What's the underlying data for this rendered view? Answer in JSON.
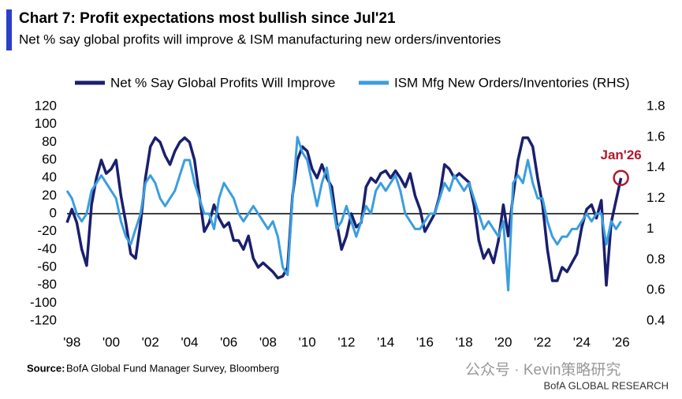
{
  "chart_data": {
    "type": "line",
    "title": "Chart 7: Profit expectations most bullish since Jul'21",
    "subtitle": "Net % say global profits will improve & ISM manufacturing new orders/inventories",
    "annotation": "Jan'26",
    "source_label": "Source:",
    "source_text": "BofA Global Fund Manager Survey, Bloomberg",
    "brand": "BofA GLOBAL RESEARCH",
    "watermark": "公众号 · Kevin策略研究",
    "x": [
      1997.75,
      1998,
      1998.25,
      1998.5,
      1998.75,
      1999,
      1999.25,
      1999.5,
      1999.75,
      2000,
      2000.25,
      2000.5,
      2000.75,
      2001,
      2001.25,
      2001.5,
      2001.75,
      2002,
      2002.25,
      2002.5,
      2002.75,
      2003,
      2003.25,
      2003.5,
      2003.75,
      2004,
      2004.25,
      2004.5,
      2004.75,
      2005,
      2005.25,
      2005.5,
      2005.75,
      2006,
      2006.25,
      2006.5,
      2006.75,
      2007,
      2007.25,
      2007.5,
      2007.75,
      2008,
      2008.25,
      2008.5,
      2008.75,
      2009,
      2009.25,
      2009.5,
      2009.75,
      2010,
      2010.25,
      2010.5,
      2010.75,
      2011,
      2011.25,
      2011.5,
      2011.75,
      2012,
      2012.25,
      2012.5,
      2012.75,
      2013,
      2013.25,
      2013.5,
      2013.75,
      2014,
      2014.25,
      2014.5,
      2014.75,
      2015,
      2015.25,
      2015.5,
      2015.75,
      2016,
      2016.25,
      2016.5,
      2016.75,
      2017,
      2017.25,
      2017.5,
      2017.75,
      2018,
      2018.25,
      2018.5,
      2018.75,
      2019,
      2019.25,
      2019.5,
      2019.75,
      2020,
      2020.25,
      2020.5,
      2020.75,
      2021,
      2021.25,
      2021.5,
      2021.75,
      2022,
      2022.25,
      2022.5,
      2022.75,
      2023,
      2023.25,
      2023.5,
      2023.75,
      2024,
      2024.25,
      2024.5,
      2024.75,
      2025,
      2025.25,
      2025.5,
      2025.75,
      2026
    ],
    "series": [
      {
        "name": "Net % Say Global Profits Will Improve",
        "color": "#1a1f6e",
        "values": [
          -10,
          5,
          -10,
          -40,
          -58,
          10,
          40,
          60,
          45,
          50,
          60,
          20,
          -10,
          -45,
          -50,
          -10,
          40,
          75,
          85,
          80,
          65,
          55,
          70,
          80,
          85,
          80,
          60,
          20,
          -20,
          -10,
          10,
          -5,
          -15,
          -10,
          -30,
          -30,
          -40,
          -25,
          -50,
          -60,
          -55,
          -60,
          -65,
          -72,
          -70,
          -60,
          20,
          60,
          75,
          70,
          50,
          40,
          55,
          40,
          30,
          -10,
          -40,
          -25,
          0,
          -15,
          -10,
          30,
          40,
          35,
          45,
          48,
          40,
          48,
          40,
          30,
          45,
          20,
          5,
          -20,
          -10,
          0,
          20,
          55,
          50,
          40,
          45,
          40,
          35,
          10,
          -30,
          -50,
          -40,
          -55,
          -30,
          10,
          -25,
          20,
          60,
          85,
          85,
          75,
          40,
          10,
          -40,
          -75,
          -75,
          -60,
          -65,
          -55,
          -45,
          -15,
          5,
          10,
          -5,
          15,
          -80,
          -10,
          15,
          40
        ]
      },
      {
        "name": "ISM Mfg New Orders/Inventories (RHS)",
        "color": "#3a9ee0",
        "axis": "y2",
        "values": [
          1.25,
          1.2,
          1.1,
          1.05,
          1.1,
          1.25,
          1.3,
          1.35,
          1.3,
          1.25,
          1.2,
          1.05,
          0.95,
          0.9,
          1.0,
          1.1,
          1.3,
          1.35,
          1.3,
          1.2,
          1.15,
          1.2,
          1.25,
          1.35,
          1.45,
          1.45,
          1.3,
          1.2,
          1.1,
          1.1,
          1.0,
          1.2,
          1.3,
          1.25,
          1.2,
          1.1,
          1.05,
          1.1,
          1.15,
          1.1,
          1.05,
          1.0,
          1.05,
          0.95,
          0.75,
          0.7,
          1.2,
          1.6,
          1.5,
          1.45,
          1.3,
          1.15,
          1.3,
          1.4,
          1.2,
          1.0,
          1.05,
          1.15,
          1.05,
          0.95,
          1.05,
          1.15,
          1.1,
          1.25,
          1.3,
          1.25,
          1.3,
          1.35,
          1.25,
          1.1,
          1.05,
          1.0,
          1.0,
          1.05,
          1.1,
          1.1,
          1.2,
          1.3,
          1.25,
          1.35,
          1.3,
          1.25,
          1.3,
          1.2,
          1.1,
          1.0,
          1.05,
          1.0,
          0.95,
          1.05,
          0.6,
          1.3,
          1.35,
          1.3,
          1.45,
          1.3,
          1.2,
          1.2,
          1.05,
          0.95,
          0.9,
          0.95,
          0.95,
          1.0,
          1.0,
          1.05,
          1.1,
          1.05,
          1.1,
          1.1,
          0.9,
          1.05,
          1.0,
          1.05
        ]
      }
    ],
    "xlim": [
      1997.75,
      2026.9
    ],
    "xticks": [
      {
        "value": 1998,
        "label": "'98"
      },
      {
        "value": 2000,
        "label": "'00"
      },
      {
        "value": 2002,
        "label": "'02"
      },
      {
        "value": 2004,
        "label": "'04"
      },
      {
        "value": 2006,
        "label": "'06"
      },
      {
        "value": 2008,
        "label": "'08"
      },
      {
        "value": 2010,
        "label": "'10"
      },
      {
        "value": 2012,
        "label": "'12"
      },
      {
        "value": 2014,
        "label": "'14"
      },
      {
        "value": 2016,
        "label": "'16"
      },
      {
        "value": 2018,
        "label": "'18"
      },
      {
        "value": 2020,
        "label": "'20"
      },
      {
        "value": 2022,
        "label": "'22"
      },
      {
        "value": 2024,
        "label": "'24"
      },
      {
        "value": 2026,
        "label": "'26"
      }
    ],
    "ylim": [
      -120,
      120
    ],
    "yticks": [
      -120,
      -100,
      -80,
      -60,
      -40,
      -20,
      0,
      20,
      40,
      60,
      80,
      100,
      120
    ],
    "y2lim": [
      0.4,
      1.8
    ],
    "y2ticks": [
      0.4,
      0.6,
      0.8,
      1.0,
      1.2,
      1.4,
      1.6,
      1.8
    ],
    "zero_line": true,
    "annotation_color": "#b0182d"
  }
}
